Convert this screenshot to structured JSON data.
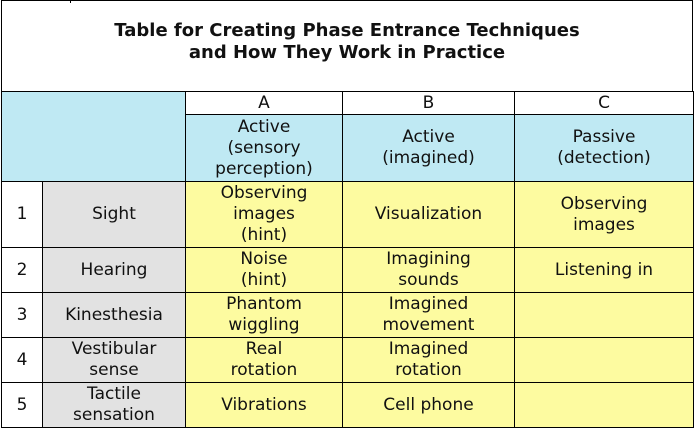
{
  "title": {
    "line1": "Table for Creating Phase Entrance Techniques",
    "line2": "and How They Work in Practice"
  },
  "columns": [
    {
      "letter": "A",
      "desc_lines": [
        "Active",
        "(sensory",
        "perception)"
      ]
    },
    {
      "letter": "B",
      "desc_lines": [
        "Active",
        "(imagined)"
      ]
    },
    {
      "letter": "C",
      "desc_lines": [
        "Passive",
        "(detection)"
      ]
    }
  ],
  "rows": [
    {
      "num": "1",
      "sense_lines": [
        "Sight"
      ],
      "a": [
        "Observing",
        "images",
        "(hint)"
      ],
      "b": [
        "Visualization"
      ],
      "c": [
        "Observing",
        "images"
      ]
    },
    {
      "num": "2",
      "sense_lines": [
        "Hearing"
      ],
      "a": [
        "Noise",
        "(hint)"
      ],
      "b": [
        "Imagining",
        "sounds"
      ],
      "c": [
        "Listening in"
      ]
    },
    {
      "num": "3",
      "sense_lines": [
        "Kinesthesia"
      ],
      "a": [
        "Phantom",
        "wiggling"
      ],
      "b": [
        "Imagined",
        "movement"
      ],
      "c": []
    },
    {
      "num": "4",
      "sense_lines": [
        "Vestibular",
        "sense"
      ],
      "a": [
        "Real",
        "rotation"
      ],
      "b": [
        "Imagined",
        "rotation"
      ],
      "c": []
    },
    {
      "num": "5",
      "sense_lines": [
        "Tactile",
        "sensation"
      ],
      "a": [
        "Vibrations"
      ],
      "b": [
        "Cell phone"
      ],
      "c": []
    }
  ]
}
